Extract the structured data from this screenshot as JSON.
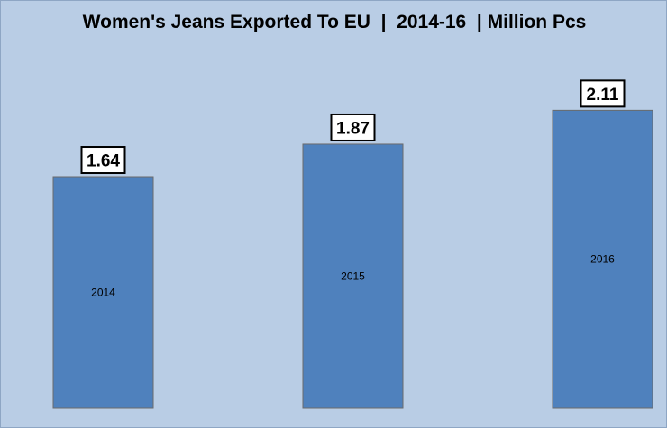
{
  "chart_data": {
    "type": "bar",
    "title": "Women's Jeans Exported To EU  |  2014-16  | Million Pcs",
    "categories": [
      "2014",
      "2015",
      "2016"
    ],
    "values": [
      1.64,
      1.87,
      2.11
    ],
    "value_labels": [
      "1.64",
      "1.87",
      "2.11"
    ],
    "xlabel": "",
    "ylabel": "",
    "ylim": [
      0,
      2.8
    ],
    "grid": false,
    "legend": "none",
    "bar_color": "#4f81bd",
    "background_color": "#b9cde5"
  }
}
